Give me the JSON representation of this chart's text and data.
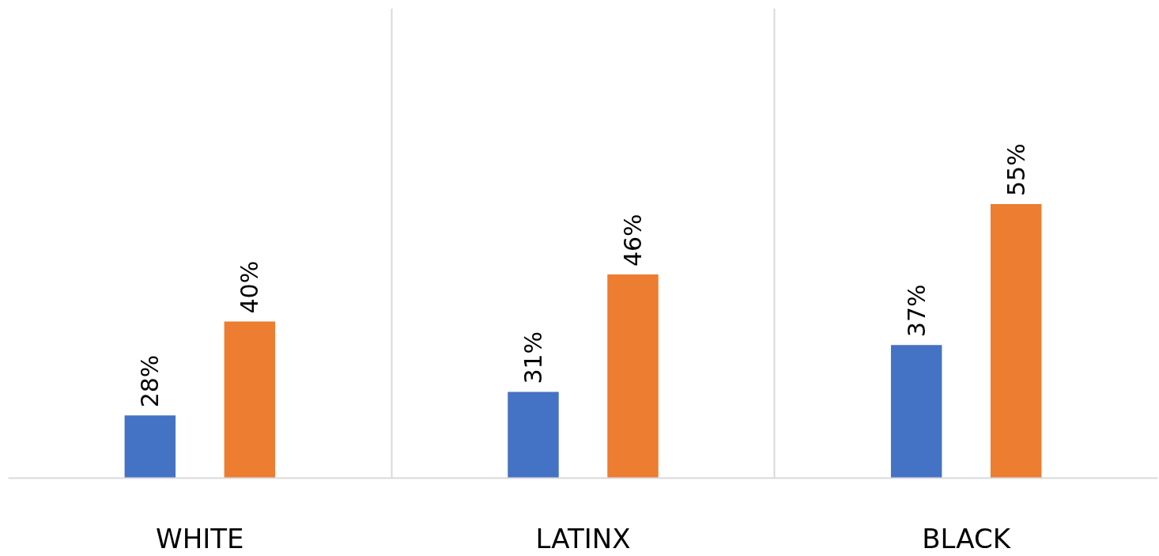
{
  "chart_data": {
    "type": "bar",
    "categories": [
      "WHITE",
      "LATINX",
      "BLACK"
    ],
    "series": [
      {
        "color": "#4472c4",
        "values": [
          28,
          31,
          37
        ],
        "value_labels": [
          "28%",
          "31%",
          "37%"
        ]
      },
      {
        "color": "#ed7d31",
        "values": [
          40,
          46,
          55
        ],
        "value_labels": [
          "40%",
          "46%",
          "55%"
        ]
      }
    ],
    "ylim": [
      20,
      80
    ],
    "tick_labels": "x",
    "grid": "x"
  }
}
